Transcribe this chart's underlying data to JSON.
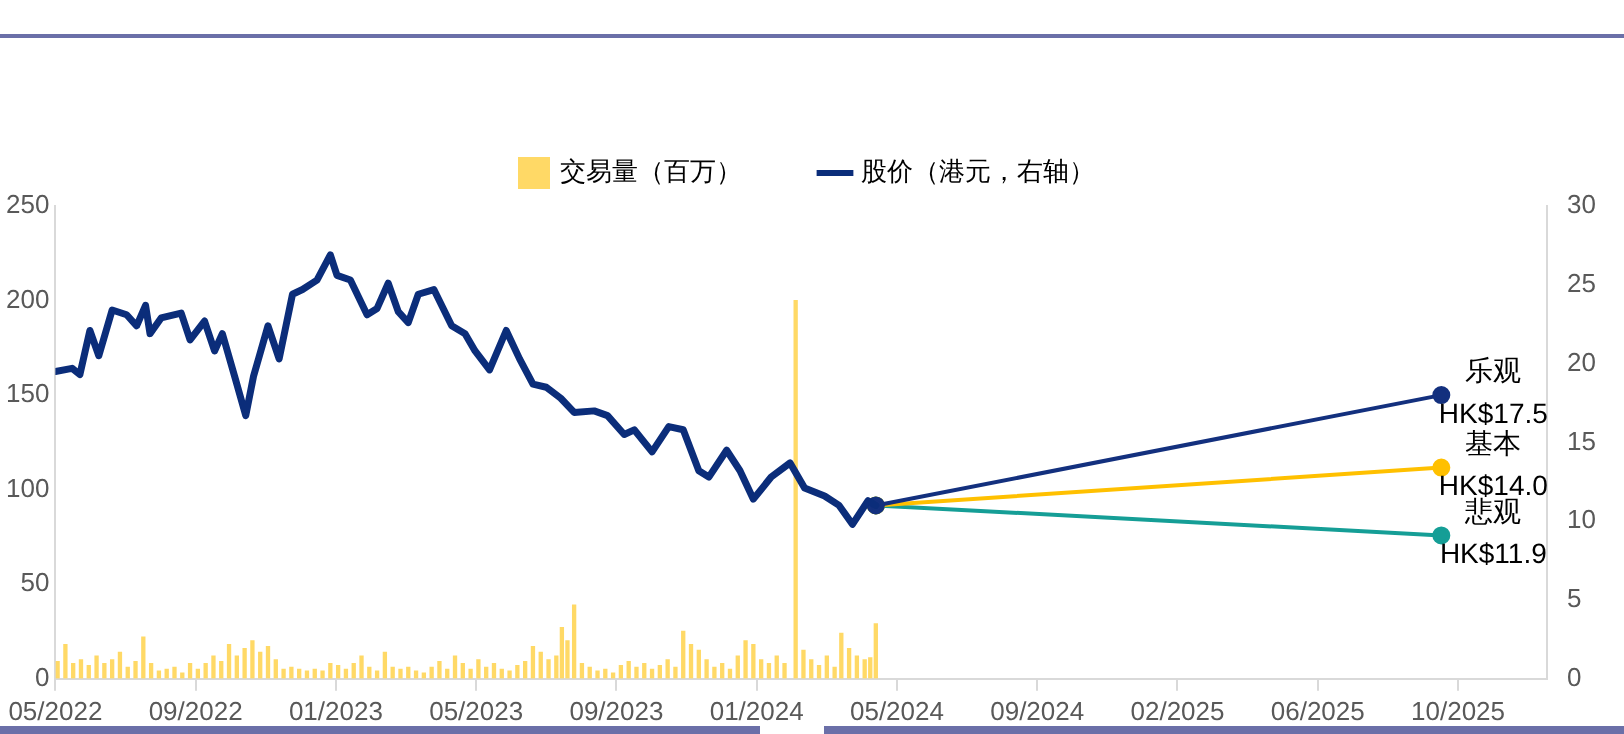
{
  "chart_data": {
    "type": "line",
    "legend": "top",
    "grid": false,
    "xlim": [
      "2022-05-01",
      "2025-12-31"
    ],
    "xticks": [
      {
        "value": "2022-05-01",
        "label": "05/2022"
      },
      {
        "value": "2022-09-04",
        "label": "09/2022"
      },
      {
        "value": "2023-01-08",
        "label": "01/2023"
      },
      {
        "value": "2023-05-14",
        "label": "05/2023"
      },
      {
        "value": "2023-09-17",
        "label": "09/2023"
      },
      {
        "value": "2024-01-21",
        "label": "01/2024"
      },
      {
        "value": "2024-05-26",
        "label": "05/2024"
      },
      {
        "value": "2024-09-29",
        "label": "09/2024"
      },
      {
        "value": "2025-02-02",
        "label": "02/2025"
      },
      {
        "value": "2025-06-08",
        "label": "06/2025"
      },
      {
        "value": "2025-10-12",
        "label": "10/2025"
      }
    ],
    "ylim": [
      0,
      250
    ],
    "yticks": [
      0,
      50,
      100,
      150,
      200,
      250
    ],
    "y2lim": [
      0,
      30
    ],
    "y2ticks": [
      0,
      5,
      10,
      15,
      20,
      25,
      30
    ],
    "series": [
      {
        "name": "交易量（百万）",
        "type": "bar",
        "color": "#ffd966",
        "x": [
          "2022-05-03",
          "2022-05-10",
          "2022-05-17",
          "2022-05-24",
          "2022-05-31",
          "2022-06-07",
          "2022-06-14",
          "2022-06-21",
          "2022-06-28",
          "2022-07-05",
          "2022-07-12",
          "2022-07-19",
          "2022-07-26",
          "2022-08-02",
          "2022-08-09",
          "2022-08-16",
          "2022-08-23",
          "2022-08-30",
          "2022-09-06",
          "2022-09-13",
          "2022-09-20",
          "2022-09-27",
          "2022-10-04",
          "2022-10-11",
          "2022-10-18",
          "2022-10-25",
          "2022-11-01",
          "2022-11-08",
          "2022-11-15",
          "2022-11-22",
          "2022-11-29",
          "2022-12-06",
          "2022-12-13",
          "2022-12-20",
          "2022-12-27",
          "2023-01-03",
          "2023-01-10",
          "2023-01-17",
          "2023-01-24",
          "2023-01-31",
          "2023-02-07",
          "2023-02-14",
          "2023-02-21",
          "2023-02-28",
          "2023-03-07",
          "2023-03-14",
          "2023-03-21",
          "2023-03-28",
          "2023-04-04",
          "2023-04-11",
          "2023-04-18",
          "2023-04-25",
          "2023-05-02",
          "2023-05-09",
          "2023-05-16",
          "2023-05-23",
          "2023-05-30",
          "2023-06-06",
          "2023-06-13",
          "2023-06-20",
          "2023-06-27",
          "2023-07-04",
          "2023-07-11",
          "2023-07-18",
          "2023-07-25",
          "2023-07-30",
          "2023-08-04",
          "2023-08-10",
          "2023-08-17",
          "2023-08-24",
          "2023-08-31",
          "2023-09-07",
          "2023-09-14",
          "2023-09-21",
          "2023-09-28",
          "2023-10-05",
          "2023-10-12",
          "2023-10-19",
          "2023-10-26",
          "2023-11-02",
          "2023-11-09",
          "2023-11-16",
          "2023-11-23",
          "2023-11-30",
          "2023-12-07",
          "2023-12-14",
          "2023-12-21",
          "2023-12-28",
          "2024-01-04",
          "2024-01-11",
          "2024-01-18",
          "2024-01-25",
          "2024-02-01",
          "2024-02-08",
          "2024-02-15",
          "2024-02-25",
          "2024-03-03",
          "2024-03-10",
          "2024-03-17",
          "2024-03-24",
          "2024-03-31",
          "2024-04-06",
          "2024-04-13",
          "2024-04-20",
          "2024-04-27",
          "2024-05-02",
          "2024-05-07"
        ],
        "values": [
          9,
          18,
          8,
          10,
          7,
          12,
          8,
          10,
          14,
          6,
          9,
          22,
          8,
          4,
          5,
          6,
          3,
          8,
          5,
          8,
          12,
          9,
          18,
          12,
          16,
          20,
          14,
          17,
          10,
          5,
          6,
          5,
          4,
          5,
          4,
          8,
          7,
          5,
          8,
          12,
          6,
          4,
          14,
          6,
          5,
          6,
          4,
          3,
          6,
          9,
          5,
          12,
          8,
          5,
          10,
          6,
          8,
          5,
          4,
          7,
          9,
          17,
          14,
          10,
          12,
          27,
          20,
          39,
          8,
          6,
          4,
          5,
          3,
          7,
          9,
          6,
          8,
          5,
          7,
          10,
          6,
          25,
          18,
          15,
          10,
          6,
          8,
          5,
          12,
          20,
          18,
          10,
          8,
          12,
          8,
          200,
          15,
          10,
          7,
          12,
          6,
          24,
          16,
          12,
          10,
          11,
          29
        ]
      },
      {
        "name": "股价（港元，右轴）",
        "axis": "y2",
        "color": "#0b2d7a",
        "x": [
          "2022-05-01",
          "2022-05-16",
          "2022-05-23",
          "2022-06-01",
          "2022-06-09",
          "2022-06-21",
          "2022-07-04",
          "2022-07-13",
          "2022-07-21",
          "2022-07-25",
          "2022-08-04",
          "2022-08-22",
          "2022-08-30",
          "2022-09-12",
          "2022-09-21",
          "2022-09-28",
          "2022-10-09",
          "2022-10-19",
          "2022-10-26",
          "2022-11-08",
          "2022-11-18",
          "2022-11-30",
          "2022-12-09",
          "2022-12-22",
          "2023-01-03",
          "2023-01-09",
          "2023-01-21",
          "2023-02-05",
          "2023-02-14",
          "2023-02-24",
          "2023-03-05",
          "2023-03-14",
          "2023-03-23",
          "2023-04-06",
          "2023-04-22",
          "2023-05-04",
          "2023-05-13",
          "2023-05-26",
          "2023-06-10",
          "2023-06-22",
          "2023-07-04",
          "2023-07-16",
          "2023-07-29",
          "2023-08-10",
          "2023-08-28",
          "2023-09-09",
          "2023-09-24",
          "2023-10-03",
          "2023-10-19",
          "2023-11-03",
          "2023-11-16",
          "2023-11-30",
          "2023-12-09",
          "2023-12-25",
          "2024-01-06",
          "2024-01-18",
          "2024-02-03",
          "2024-02-20",
          "2024-03-04",
          "2024-03-22",
          "2024-04-04",
          "2024-04-16",
          "2024-04-30",
          "2024-05-07"
        ],
        "values": [
          19.5,
          19.7,
          19.3,
          22.1,
          20.5,
          23.4,
          23.1,
          22.4,
          23.7,
          21.9,
          22.9,
          23.2,
          21.5,
          22.7,
          20.8,
          21.9,
          19.2,
          16.7,
          19.2,
          22.4,
          20.3,
          24.4,
          24.7,
          25.3,
          26.9,
          25.6,
          25.3,
          23.1,
          23.5,
          25.1,
          23.3,
          22.6,
          24.4,
          24.7,
          22.4,
          21.9,
          20.8,
          19.6,
          22.1,
          20.3,
          18.7,
          18.5,
          17.8,
          16.9,
          17.0,
          16.7,
          15.5,
          15.8,
          14.4,
          16.0,
          15.8,
          13.2,
          12.8,
          14.5,
          13.2,
          11.4,
          12.8,
          13.7,
          12.1,
          11.6,
          11.0,
          9.8,
          11.3,
          11.0
        ]
      },
      {
        "axis": "y2",
        "color": "#13307e",
        "marker": "circle",
        "x": [
          "2024-05-07",
          "2025-09-27"
        ],
        "values": [
          11.0,
          18.0
        ]
      },
      {
        "axis": "y2",
        "color": "#ffc000",
        "marker": "circle",
        "x": [
          "2024-05-07",
          "2025-09-27"
        ],
        "values": [
          11.0,
          13.4
        ]
      },
      {
        "axis": "y2",
        "color": "#159e96",
        "marker": "circle",
        "x": [
          "2024-05-07",
          "2025-09-27"
        ],
        "values": [
          11.0,
          9.1
        ]
      }
    ],
    "annotations": [
      "乐观\nHK$17.5",
      "基本\nHK$14.0",
      "悲观\nHK$11.9"
    ]
  }
}
